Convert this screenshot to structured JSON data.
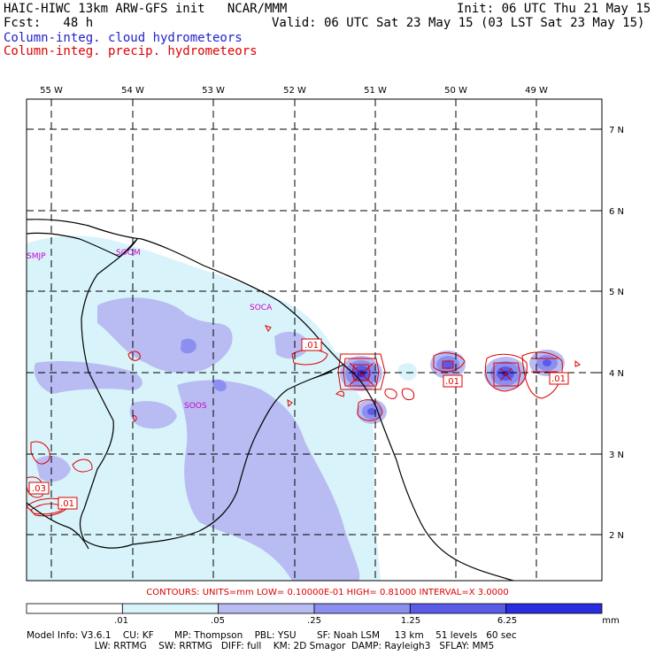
{
  "header": {
    "left_line1": "HAIC-HIWC 13km ARW-GFS init   NCAR/MMM",
    "left_line2": "Fcst:   48 h",
    "right_line1": "Init: 06 UTC Thu 21 May 15",
    "right_line2": "Valid: 06 UTC Sat 23 May 15 (03 LST Sat 23 May 15)",
    "field1": "Column-integ. cloud hydrometeors",
    "field2": "Column-integ. precip. hydrometeors",
    "field1_color": "#2222cc",
    "field2_color": "#dd0000"
  },
  "longitude_labels": [
    "55 W",
    "54 W",
    "53 W",
    "52 W",
    "51 W",
    "50 W",
    "49 W"
  ],
  "latitude_labels": [
    "7 N",
    "6 N",
    "5 N",
    "4 N",
    "3 N",
    "2 N"
  ],
  "stations": [
    "SMJP",
    "SOOM",
    "SOCA",
    "SOOS"
  ],
  "contour_labels": [
    ".01",
    ".01",
    ".01",
    ".03",
    ".01"
  ],
  "contours_line": "CONTOURS:  UNITS=mm  LOW= 0.10000E-01  HIGH= 0.81000      INTERVAL=X  3.0000",
  "colorbar": {
    "ticks": [
      ".01",
      ".05",
      ".25",
      "1.25",
      "6.25"
    ],
    "unit": "mm",
    "colors": [
      "#ffffff",
      "#d8f4fa",
      "#b8bcf2",
      "#8c8ef0",
      "#5a5ce8",
      "#2a2ce0",
      "#0e10dc"
    ]
  },
  "model_info": {
    "line1": "Model Info: V3.6.1    CU: KF       MP: Thompson    PBL: YSU       SF: Noah LSM     13 km    51 levels   60 sec",
    "line2": "                       LW: RRTMG    SW: RRTMG   DIFF: full    KM: 2D Smagor  DAMP: Rayleigh3   SFLAY: MM5"
  }
}
